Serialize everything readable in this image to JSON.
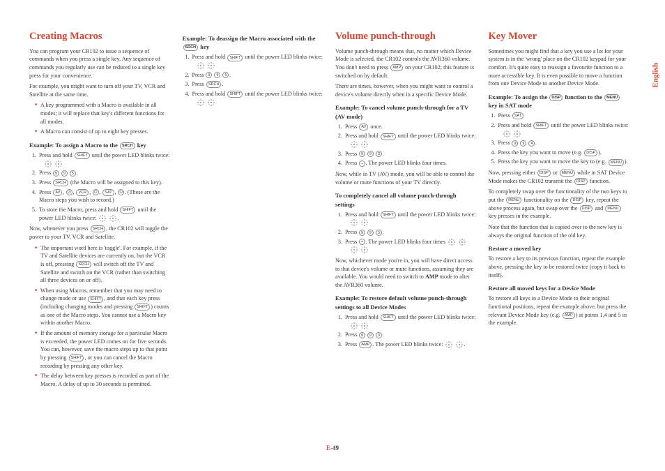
{
  "sideLabel": "English",
  "pageNum": {
    "prefix": "E-",
    "num": "49"
  },
  "col1": {
    "h1": "Creating Macros",
    "p1": "You can program your CR102 to issue a sequence of commands when you press a single key. Any sequence of commands you regularly use can be reduced to a single key press for your convenience.",
    "p2": "For example, you might want to turn off your TV, VCR and Satellite at the same time.",
    "b1": "A key programmed with a Macro is available in all modes; it will replace that key's different functions for all modes.",
    "b2": "A Macro can consist of up to eight key presses.",
    "h2a": "Example: To assign a Macro to the",
    "h2a2": "key",
    "l1": "Press and hold",
    "l1b": "until the power LED blinks twice:",
    "l2a": "Press",
    "l3a": "Press",
    "l3b": "(the Macro will be assigned to this key).",
    "l4a": "Press",
    "l4b": "(These are the Macro steps you wish to record.)",
    "l5a": "To store the Macro, press and hold",
    "l5b": "until the power LED blinks twice:",
    "p3a": "Now, whenever you press",
    "p3b": ", the CR102 will toggle the power to your TV, VCR and Satellite.",
    "b3": "The important word here is 'toggle'. For example, if the TV and Satellite devices are currently on, but the VCR is off, pressing",
    "b3b": "will switch off the TV and Satellite and switch on the VCR (rather than switching all three devices on or off).",
    "b4": "When using Macros, remember that you may need to change mode or use",
    "b4b": ", and that each key press (including changing modes and pressing",
    "b4c": ") counts as one of the Macro steps. You cannot use a Macro key within another Macro.",
    "b5": "If the amount of memory storage for a particular Macro is exceeded, the power LED comes on for five seconds. You can, however, save the macro steps up to that point by pressing",
    "b5b": ", or you can cancel the Macro recording by pressing any other key.",
    "b6": "The delay between key presses is recorded as part of the Macro. A delay of up to 30 seconds is permitted."
  },
  "col2": {
    "h2a": "Example: To deassign the Macro associated with the",
    "h2a2": "key",
    "l1": "Press and hold",
    "l1b": "until the power LED blinks twice:",
    "l2": "Press",
    "l3": "Press",
    "l4": "Press and hold",
    "l4b": "until the power LED blinks twice:"
  },
  "col3": {
    "h1": "Volume punch-through",
    "p1": "Volume punch-through means that, no matter which Device Mode is selected, the CR102 controls the AVR360 volume. You don't need to press",
    "p1b": "on your CR102; this feature is switched on by default.",
    "p2": "There are times, however, when you might want to control a device's volume directly when in a specific Device Mode.",
    "h2a": "Example: To cancel volume punch-through for a TV (AV mode)",
    "l1a": "Press",
    "l1b": "once.",
    "l2a": "Press and hold",
    "l2b": "until the power LED blinks twice:",
    "l3": "Press",
    "l4a": "Press",
    "l4b": ". The power LED blinks four times.",
    "p3": "Now, while in TV (AV) mode, you will be able to control the volume or mute functions of your TV directly.",
    "h2b": "To completely cancel all volume punch-through settings",
    "m1a": "Press and hold",
    "m1b": "until the power LED blinks twice:",
    "m2": "Press",
    "m3a": "Press",
    "m3b": ". The power LED blinks four times",
    "p4": "Now, whichever mode you're in, you will have direct access to that device's volume or mute functions, assuming they are available. You would need to switch to",
    "p4b": "mode to alter the AVR360 volume.",
    "h2c": "Example: To restore default volume punch-through settings to all Device Modes",
    "n1a": "Press and hold",
    "n1b": "until the power LED blinks twice:",
    "n2": "Press",
    "n3a": "Press",
    "n3b": ". The power LED blinks twice:"
  },
  "col4": {
    "h1": "Key Mover",
    "p1": "Sometimes you might find that a key you use a lot for your system is in the 'wrong' place on the CR102 keypad for your comfort. It's quite easy to reassign a favourite function to a more accessible key. It is even possible to move a function from one Device Mode to another Device Mode.",
    "h2a": "Example: To assign the",
    "h2a2": "function to the",
    "h2a3": "key in SAT mode",
    "l1": "Press",
    "l2a": "Press and hold",
    "l2b": "until the power LED blinks twice:",
    "l3": "Press",
    "l4": "Press the key you want to move (e.g.",
    "l5": "Press the key you want to move the key to (e.g.",
    "p2a": "Now, pressing either",
    "p2b": "or",
    "p2c": "while in SAT Device Mode makes the CR102 transmit the",
    "p2d": "function.",
    "p3a": "To completely swap over the functionality of the two keys to put the",
    "p3b": "functionality on the",
    "p3c": "key, repeat the above process again, but swap over the",
    "p3d": "and",
    "p3e": "key presses in the example.",
    "p4": "Note that the function that is copied over to the new key is always the original function of the old key.",
    "h2b": "Restore a moved key",
    "p5": "To restore a key to its previous function, repeat the example above, pressing the key to be restored twice (copy it back to itself).",
    "h2c": "Restore all moved keys for a Device Mode",
    "p6": "To restore all keys in a Device Mode to their original functional positions, repeat the example above, but press the relevant Device Mode key (e.g.",
    "p6b": ") at points 1,4 and 5 in the example."
  }
}
